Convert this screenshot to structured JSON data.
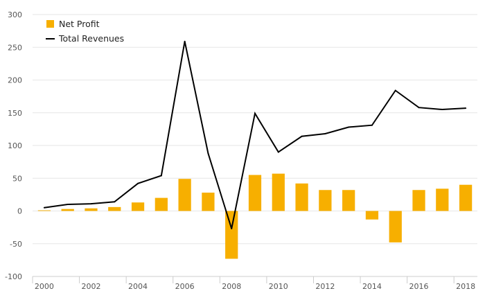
{
  "chart_data": {
    "type": "bar",
    "x": [
      2000,
      2001,
      2002,
      2003,
      2004,
      2005,
      2006,
      2007,
      2008,
      2009,
      2010,
      2011,
      2012,
      2013,
      2014,
      2015,
      2016,
      2017,
      2018
    ],
    "x_tick_labels": [
      "2000",
      "2002",
      "2004",
      "2006",
      "2008",
      "2010",
      "2012",
      "2014",
      "2016",
      "2018"
    ],
    "y_tick_labels": [
      "300",
      "250",
      "200",
      "150",
      "100",
      "50",
      "0",
      "-50",
      "-100"
    ],
    "ylim": [
      -100,
      300
    ],
    "grid": true,
    "legend_position": "top-left",
    "series": [
      {
        "name": "Net Profit",
        "type": "bar",
        "color": "#F7AF00",
        "values": [
          1,
          3,
          4,
          6,
          13,
          20,
          49,
          28,
          -73,
          55,
          57,
          42,
          32,
          32,
          -13,
          -48,
          32,
          34,
          40
        ]
      },
      {
        "name": "Total Revenues",
        "type": "line",
        "color": "#000000",
        "values": [
          5,
          10,
          11,
          14,
          42,
          54,
          259,
          88,
          -27,
          149,
          90,
          114,
          118,
          128,
          131,
          184,
          158,
          155,
          157
        ]
      }
    ]
  }
}
